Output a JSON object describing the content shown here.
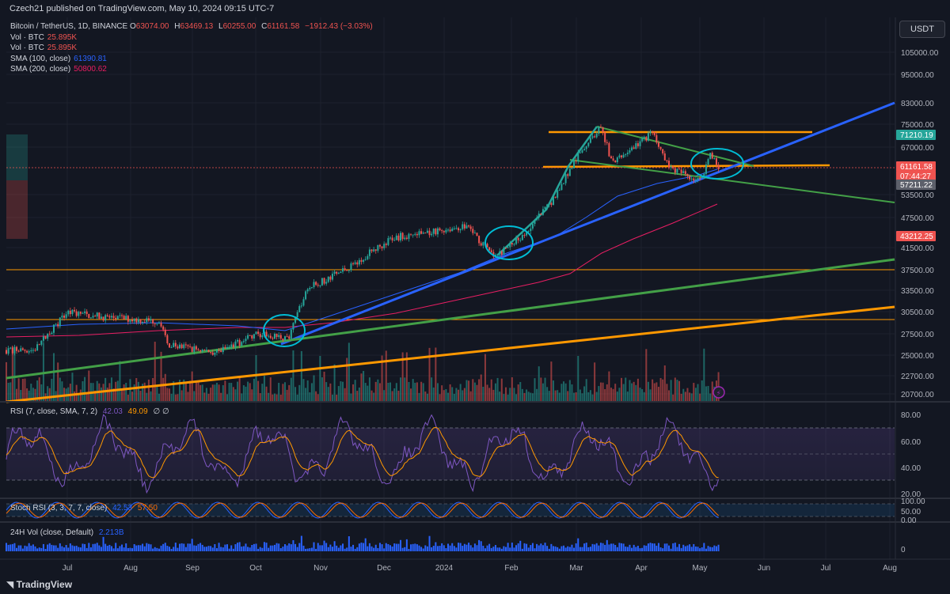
{
  "header": {
    "publisher": "Czech21 published on TradingView.com, May 10, 2024 09:15 UTC-7",
    "currency_button": "USDT"
  },
  "legend": {
    "symbol": "Bitcoin / TetherUS, 1D, BINANCE",
    "o_label": "O",
    "o_value": "63074.00",
    "h_label": "H",
    "h_value": "63469.13",
    "l_label": "L",
    "l_value": "60255.00",
    "c_label": "C",
    "c_value": "61161.58",
    "change": "−1912.43 (−3.03%)",
    "vol1_label": "Vol · BTC",
    "vol1_value": "25.895K",
    "vol2_label": "Vol · BTC",
    "vol2_value": "25.895K",
    "sma100_label": "SMA (100, close)",
    "sma100_value": "61390.81",
    "sma200_label": "SMA (200, close)",
    "sma200_value": "50800.62"
  },
  "price_axis": {
    "ticks": [
      "105000.00",
      "95000.00",
      "83000.00",
      "75000.00",
      "67000.00",
      "53500.00",
      "47500.00",
      "41500.00",
      "37500.00",
      "33500.00",
      "30500.00",
      "27500.00",
      "25000.00",
      "22700.00",
      "20700.00"
    ],
    "badges": [
      {
        "text": "71210.19",
        "color": "#26a69a"
      },
      {
        "text": "61161.58",
        "color": "#ef5350"
      },
      {
        "text": "07:44:27",
        "color": "#ef5350"
      },
      {
        "text": "57211.22",
        "color": "#5d606b"
      },
      {
        "text": "43212.25",
        "color": "#ef5350"
      }
    ]
  },
  "rsi_panel": {
    "label": "RSI (7, close, SMA, 7, 2)",
    "value1": "42.03",
    "value2": "49.09",
    "extra": "∅ ∅",
    "ticks": [
      "80.00",
      "60.00",
      "40.00",
      "20.00"
    ]
  },
  "stoch_panel": {
    "label": "Stoch RSI (3, 3, 7, 7, close)",
    "value1": "42.53",
    "value2": "57.50",
    "ticks": [
      "100.00",
      "50.00",
      "0.00"
    ]
  },
  "vol24_panel": {
    "label": "24H Vol (close, Default)",
    "value": "2.213B",
    "ticks": [
      "0"
    ]
  },
  "time_axis": [
    "Jul",
    "Aug",
    "Sep",
    "Oct",
    "Nov",
    "Dec",
    "2024",
    "Feb",
    "Mar",
    "Apr",
    "May",
    "Jun",
    "Jul",
    "Aug"
  ],
  "footer": {
    "brand": "TradingView"
  },
  "colors": {
    "background": "#131722",
    "up": "#26a69a",
    "down": "#ef5350",
    "sma100": "#2962ff",
    "sma200": "#e91e63",
    "rsi": "#7e57c2",
    "rsi_ma": "#ff9800",
    "trend_blue": "#2962ff",
    "trend_green": "#43a047",
    "trend_orange": "#ff9800",
    "circle": "#00bcd4"
  },
  "chart_data": {
    "type": "candlestick",
    "title": "Bitcoin / TetherUS, 1D, BINANCE",
    "interval": "1D",
    "price_scale": "log",
    "ylim": [
      20000,
      110000
    ],
    "x_range": [
      "2024-06-15 (previous year view start ~2023-06-15)",
      "2024-08-31"
    ],
    "last_price": 61161.58,
    "key_levels": [
      71210.19,
      61161.58,
      57211.22,
      43212.25
    ],
    "price_path_approx": [
      {
        "date": "2023-06-15",
        "price": 25500
      },
      {
        "date": "2023-07-01",
        "price": 30500
      },
      {
        "date": "2023-07-20",
        "price": 29800
      },
      {
        "date": "2023-08-15",
        "price": 29200
      },
      {
        "date": "2023-08-18",
        "price": 26200
      },
      {
        "date": "2023-09-11",
        "price": 25200
      },
      {
        "date": "2023-10-01",
        "price": 27500
      },
      {
        "date": "2023-10-16",
        "price": 27000
      },
      {
        "date": "2023-10-24",
        "price": 34000
      },
      {
        "date": "2023-11-10",
        "price": 37000
      },
      {
        "date": "2023-12-05",
        "price": 43500
      },
      {
        "date": "2024-01-10",
        "price": 46000
      },
      {
        "date": "2024-01-23",
        "price": 39500
      },
      {
        "date": "2024-02-08",
        "price": 45000
      },
      {
        "date": "2024-02-20",
        "price": 52000
      },
      {
        "date": "2024-03-05",
        "price": 66000
      },
      {
        "date": "2024-03-14",
        "price": 73500
      },
      {
        "date": "2024-03-20",
        "price": 62000
      },
      {
        "date": "2024-04-08",
        "price": 71500
      },
      {
        "date": "2024-04-17",
        "price": 60500
      },
      {
        "date": "2024-05-01",
        "price": 57000
      },
      {
        "date": "2024-05-06",
        "price": 64500
      },
      {
        "date": "2024-05-10",
        "price": 61161.58
      }
    ],
    "indicators": {
      "sma100_last": 61390.81,
      "sma200_last": 50800.62,
      "rsi_last": 42.03,
      "rsi_ma_last": 49.09,
      "stoch_k": 42.53,
      "stoch_d": 57.5,
      "vol_24h": "2.213B"
    }
  }
}
